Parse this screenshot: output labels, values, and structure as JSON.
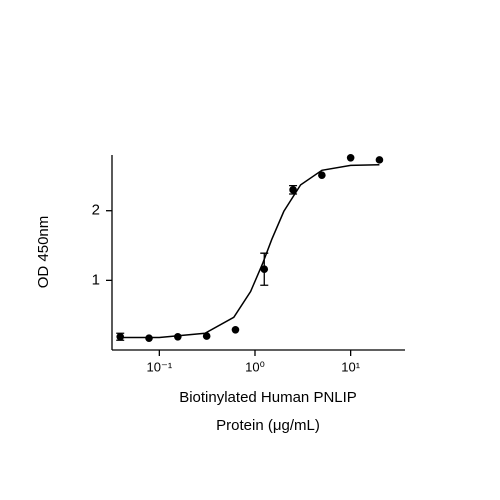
{
  "chart_data": {
    "type": "scatter",
    "xlabel": [
      "Biotinylated Human PNLIP",
      "Protein (μg/mL)"
    ],
    "ylabel": "OD 450nm",
    "x": [
      0.039,
      0.078,
      0.156,
      0.3125,
      0.625,
      1.25,
      2.5,
      5,
      10,
      20
    ],
    "values": [
      0.19,
      0.17,
      0.19,
      0.2,
      0.29,
      1.16,
      2.3,
      2.51,
      2.76,
      2.73
    ],
    "errors": [
      0.05,
      null,
      null,
      null,
      null,
      0.23,
      0.06,
      null,
      null,
      null
    ],
    "fit": {
      "x": [
        0.04,
        0.1,
        0.3,
        0.6,
        0.9,
        1.2,
        1.5,
        2,
        3,
        5,
        10,
        20
      ],
      "values": [
        0.18,
        0.18,
        0.24,
        0.47,
        0.84,
        1.24,
        1.59,
        1.99,
        2.37,
        2.58,
        2.65,
        2.66
      ]
    },
    "color": "#000000",
    "xscale": "log",
    "xlim": [
      0.032,
      37
    ],
    "xticks": [
      {
        "value": 0.1,
        "label": "10⁻¹"
      },
      {
        "value": 1,
        "label": "10⁰"
      },
      {
        "value": 10,
        "label": "10¹"
      }
    ],
    "ylim": [
      0,
      2.8
    ],
    "yticks": [
      1,
      2
    ],
    "grid": false
  }
}
